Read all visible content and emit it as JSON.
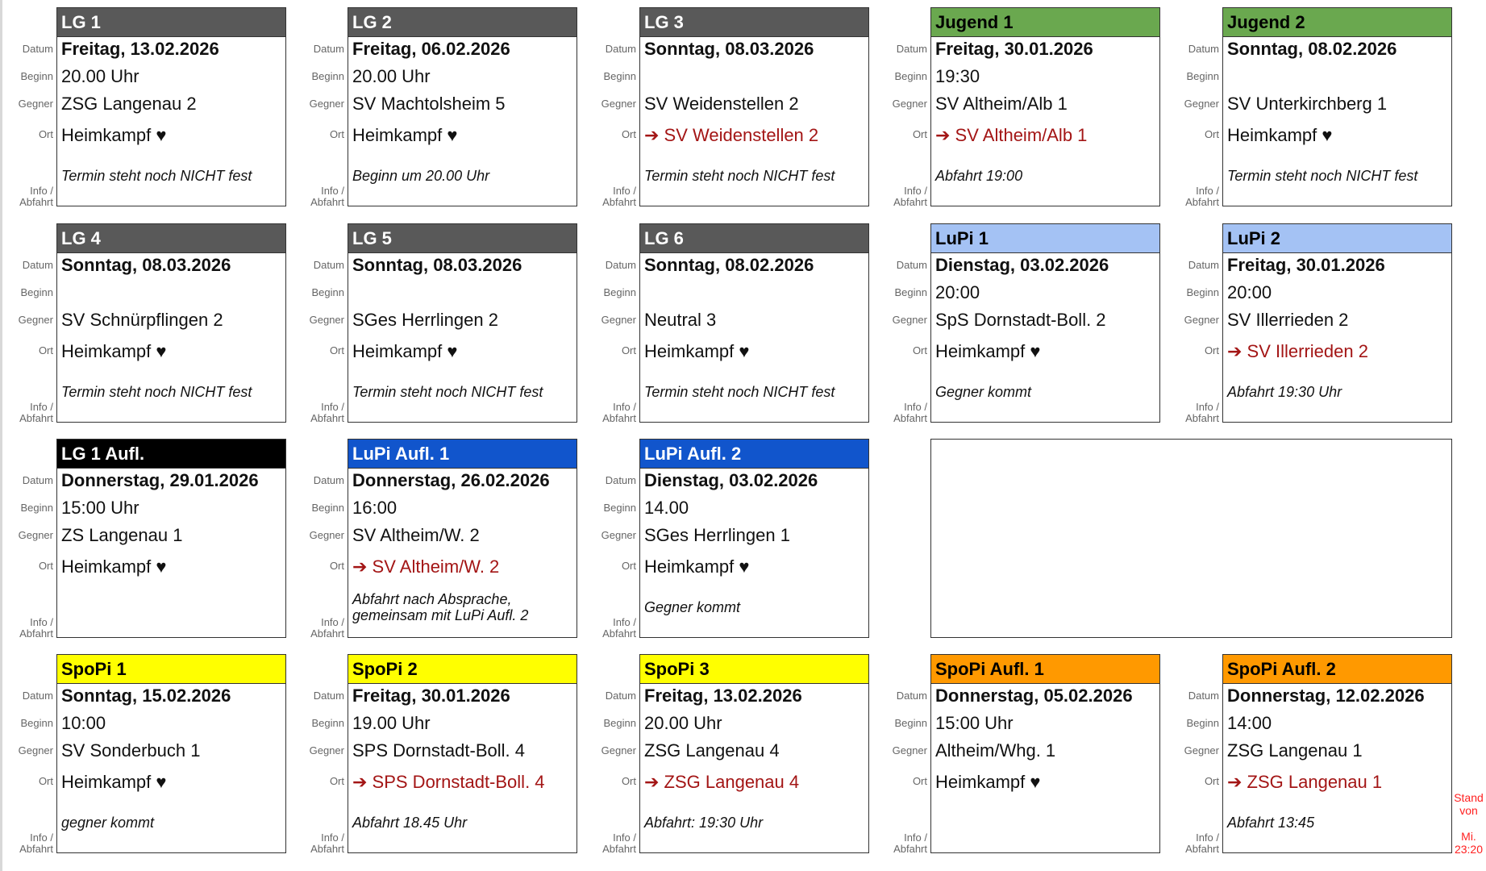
{
  "labels": {
    "datum": "Datum",
    "beginn": "Beginn",
    "gegner": "Gegner",
    "ort": "Ort",
    "info1": "Info /",
    "info2": "Abfahrt"
  },
  "colors": {
    "lg": "#595959",
    "jugend": "#6aa84f",
    "lupi": "#a4c2f4",
    "lg_aufl": "#000000",
    "lupi_aufl": "#1155cc",
    "spopi": "#ffff00",
    "spopi_aufl": "#ff9900",
    "away_text": "#a31515",
    "stand_text": "#ff2020"
  },
  "cards": [
    {
      "title": "LG 1",
      "color": "lg",
      "dark": true,
      "datum": "Freitag, 13.02.2026",
      "beginn": "20.00 Uhr",
      "gegner": "ZSG Langenau 2",
      "ort": "Heimkampf ♥",
      "away": false,
      "info": "Termin steht noch NICHT fest"
    },
    {
      "title": "LG 2",
      "color": "lg",
      "dark": true,
      "datum": "Freitag, 06.02.2026",
      "beginn": "20.00 Uhr",
      "gegner": "SV Machtolsheim 5",
      "ort": "Heimkampf ♥",
      "away": false,
      "info": "Beginn um 20.00 Uhr"
    },
    {
      "title": "LG 3",
      "color": "lg",
      "dark": true,
      "datum": "Sonntag, 08.03.2026",
      "beginn": "",
      "gegner": "SV Weidenstellen 2",
      "ort": "➔ SV Weidenstellen 2",
      "away": true,
      "info": "Termin steht noch NICHT fest"
    },
    {
      "title": "Jugend 1",
      "color": "jugend",
      "dark": false,
      "datum": "Freitag, 30.01.2026",
      "beginn": "19:30",
      "gegner": "SV Altheim/Alb 1",
      "ort": "➔ SV Altheim/Alb 1",
      "away": true,
      "info": "Abfahrt 19:00"
    },
    {
      "title": "Jugend 2",
      "color": "jugend",
      "dark": false,
      "datum": "Sonntag, 08.02.2026",
      "beginn": "",
      "gegner": "SV Unterkirchberg 1",
      "ort": "Heimkampf ♥",
      "away": false,
      "info": "Termin steht noch NICHT fest"
    },
    {
      "title": "LG 4",
      "color": "lg",
      "dark": true,
      "datum": "Sonntag, 08.03.2026",
      "beginn": "",
      "gegner": "SV Schnürpflingen 2",
      "ort": "Heimkampf ♥",
      "away": false,
      "info": "Termin steht noch NICHT fest"
    },
    {
      "title": "LG 5",
      "color": "lg",
      "dark": true,
      "datum": "Sonntag, 08.03.2026",
      "beginn": "",
      "gegner": "SGes Herrlingen 2",
      "ort": "Heimkampf ♥",
      "away": false,
      "info": "Termin steht noch NICHT fest"
    },
    {
      "title": "LG 6",
      "color": "lg",
      "dark": true,
      "datum": "Sonntag, 08.02.2026",
      "beginn": "",
      "gegner": "Neutral 3",
      "ort": "Heimkampf ♥",
      "away": false,
      "info": "Termin steht noch NICHT fest"
    },
    {
      "title": "LuPi 1",
      "color": "lupi",
      "dark": false,
      "datum": "Dienstag, 03.02.2026",
      "beginn": "20:00",
      "gegner": "SpS Dornstadt-Boll. 2",
      "ort": "Heimkampf ♥",
      "away": false,
      "info": "Gegner kommt"
    },
    {
      "title": "LuPi 2",
      "color": "lupi",
      "dark": false,
      "datum": "Freitag, 30.01.2026",
      "beginn": "20:00",
      "gegner": "SV Illerrieden 2",
      "ort": "➔ SV Illerrieden 2",
      "away": true,
      "info": "Abfahrt 19:30 Uhr"
    },
    {
      "title": "LG 1 Aufl.",
      "color": "lg_aufl",
      "dark": true,
      "datum": "Donnerstag, 29.01.2026",
      "beginn": "15:00 Uhr",
      "gegner": "ZS Langenau 1",
      "ort": "Heimkampf ♥",
      "away": false,
      "info": ""
    },
    {
      "title": "LuPi Aufl. 1",
      "color": "lupi_aufl",
      "dark": true,
      "datum": "Donnerstag, 26.02.2026",
      "beginn": "16:00",
      "gegner": "SV Altheim/W. 2",
      "ort": "➔ SV Altheim/W. 2",
      "away": true,
      "info": "Abfahrt nach Absprache, gemeinsam mit LuPi Aufl. 2"
    },
    {
      "title": "LuPi Aufl. 2",
      "color": "lupi_aufl",
      "dark": true,
      "datum": "Dienstag, 03.02.2026",
      "beginn": "14.00",
      "gegner": "SGes Herrlingen 1",
      "ort": "Heimkampf ♥",
      "away": false,
      "info": "Gegner kommt"
    },
    {
      "title": "SpoPi 1",
      "color": "spopi",
      "dark": false,
      "datum": "Sonntag, 15.02.2026",
      "beginn": "10:00",
      "gegner": "SV Sonderbuch 1",
      "ort": "Heimkampf ♥",
      "away": false,
      "info": "gegner kommt"
    },
    {
      "title": "SpoPi 2",
      "color": "spopi",
      "dark": false,
      "datum": "Freitag, 30.01.2026",
      "beginn": "19.00 Uhr",
      "gegner": "SPS Dornstadt-Boll. 4",
      "ort": "➔ SPS Dornstadt-Boll. 4",
      "away": true,
      "info": "Abfahrt 18.45 Uhr"
    },
    {
      "title": "SpoPi 3",
      "color": "spopi",
      "dark": false,
      "datum": "Freitag, 13.02.2026",
      "beginn": "20.00 Uhr",
      "gegner": "ZSG Langenau 4",
      "ort": "➔ ZSG Langenau 4",
      "away": true,
      "info": "Abfahrt: 19:30 Uhr"
    },
    {
      "title": "SpoPi Aufl. 1",
      "color": "spopi_aufl",
      "dark": false,
      "datum": "Donnerstag, 05.02.2026",
      "beginn": "15:00 Uhr",
      "gegner": "Altheim/Whg. 1",
      "ort": "Heimkampf ♥",
      "away": false,
      "info": ""
    },
    {
      "title": "SpoPi Aufl. 2",
      "color": "spopi_aufl",
      "dark": false,
      "datum": "Donnerstag, 12.02.2026",
      "beginn": "14:00",
      "gegner": "ZSG Langenau 1",
      "ort": "➔ ZSG Langenau 1",
      "away": true,
      "info": "Abfahrt 13:45"
    }
  ],
  "stand": {
    "line1": "Stand",
    "line2": "von",
    "line3": "Mi.",
    "line4": "23:20"
  }
}
